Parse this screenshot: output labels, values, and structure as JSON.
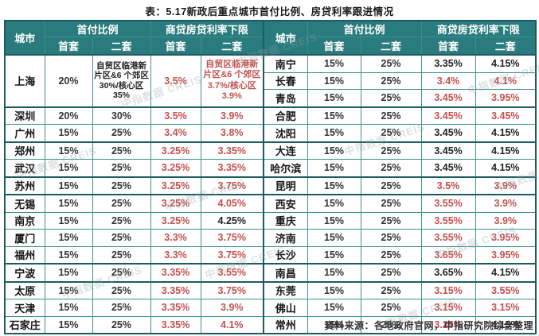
{
  "chart_data": {
    "type": "table",
    "title": "表：5.17新政后重点城市首付比例、房贷利率跟进情况",
    "source": "资料来源：各地政府官网，中指研究院综合整理",
    "watermark": "中指数据 CREIS",
    "headers": {
      "city": "城市",
      "down_payment": "首付比例",
      "rate_floor": "商贷房贷利率下限",
      "first": "首套",
      "second": "二套"
    },
    "colors": {
      "header_bg": "#2a7b7e",
      "border": "#3c9094",
      "border_thick": "#1c5c60",
      "red": "#c4514f",
      "text": "#212121"
    },
    "thick_top_rows": [
      4,
      6,
      8,
      9,
      13,
      14
    ],
    "left_rows": [
      {
        "city": "上海",
        "span": 3,
        "dp1": "20%",
        "dp2": "自贸区临港新片区&6 个郊区 30%/核心区 35%",
        "dp2_small": true,
        "r1": "3.5%",
        "r1_red": true,
        "r2": "自贸区临港新片区&6 个郊区 3.7%/核心区 3.9%",
        "r2_red": true,
        "r2_small": true
      },
      {
        "city": "深圳",
        "dp1": "20%",
        "dp2": "30%",
        "r1": "3.5%",
        "r1_red": true,
        "r2": "3.9%",
        "r2_red": true
      },
      {
        "city": "广州",
        "dp1": "15%",
        "dp2": "25%",
        "r1": "3.4%",
        "r1_red": true,
        "r2": "3.8%",
        "r2_red": true
      },
      {
        "city": "郑州",
        "dp1": "15%",
        "dp2": "25%",
        "r1": "3.25%",
        "r1_red": true,
        "r2": "3.35%",
        "r2_red": true
      },
      {
        "city": "武汉",
        "dp1": "15%",
        "dp2": "25%",
        "r1": "3.25%",
        "r1_red": true,
        "r2": "3.35%",
        "r2_red": true
      },
      {
        "city": "苏州",
        "dp1": "15%",
        "dp2": "25%",
        "r1": "3.25%",
        "r1_red": true,
        "r2": "3.75%",
        "r2_red": true
      },
      {
        "city": "无锡",
        "dp1": "15%",
        "dp2": "25%",
        "r1": "3.25%",
        "r1_red": true,
        "r2": "4.05%",
        "r2_red": true
      },
      {
        "city": "南京",
        "dp1": "15%",
        "dp2": "25%",
        "r1": "3.25%",
        "r1_red": true,
        "r2": "4.25%",
        "r2_red": false
      },
      {
        "city": "厦门",
        "dp1": "15%",
        "dp2": "25%",
        "r1": "3.3%",
        "r1_red": true,
        "r2": "3.75%",
        "r2_red": true
      },
      {
        "city": "福州",
        "dp1": "15%",
        "dp2": "25%",
        "r1": "3.3%",
        "r1_red": true,
        "r2": "3.75%",
        "r2_red": true
      },
      {
        "city": "宁波",
        "dp1": "15%",
        "dp2": "25%",
        "r1": "3.35%",
        "r1_red": true,
        "r2": "3.55%",
        "r2_red": true
      },
      {
        "city": "太原",
        "dp1": "15%",
        "dp2": "25%",
        "r1": "3.35%",
        "r1_red": true,
        "r2": "3.75%",
        "r2_red": true
      },
      {
        "city": "天津",
        "dp1": "15%",
        "dp2": "25%",
        "r1": "3.35%",
        "r1_red": true,
        "r2": "3.9%",
        "r2_red": true
      },
      {
        "city": "石家庄",
        "dp1": "15%",
        "dp2": "25%",
        "r1": "3.35%",
        "r1_red": true,
        "r2": "4.1%",
        "r2_red": true
      }
    ],
    "right_rows": [
      {
        "city": "南宁",
        "dp1": "15%",
        "dp2": "25%",
        "r1": "3.35%",
        "r1_red": false,
        "r2": "4.15%",
        "r2_red": false
      },
      {
        "city": "长春",
        "dp1": "15%",
        "dp2": "25%",
        "r1": "3.4%",
        "r1_red": true,
        "r2": "4.1%",
        "r2_red": true
      },
      {
        "city": "青岛",
        "dp1": "15%",
        "dp2": "25%",
        "r1": "3.45%",
        "r1_red": true,
        "r2": "3.95%",
        "r2_red": true
      },
      {
        "city": "合肥",
        "dp1": "15%",
        "dp2": "25%",
        "r1": "3.45%",
        "r1_red": true,
        "r2": "3.45%",
        "r2_red": true
      },
      {
        "city": "沈阳",
        "dp1": "15%",
        "dp2": "25%",
        "r1": "3.45%",
        "r1_red": false,
        "r2": "4.15%",
        "r2_red": false
      },
      {
        "city": "大连",
        "dp1": "15%",
        "dp2": "25%",
        "r1": "3.45%",
        "r1_red": false,
        "r2": "4.15%",
        "r2_red": false
      },
      {
        "city": "哈尔滨",
        "dp1": "15%",
        "dp2": "25%",
        "r1": "3.45%",
        "r1_red": false,
        "r2": "4.15%",
        "r2_red": false
      },
      {
        "city": "昆明",
        "dp1": "15%",
        "dp2": "25%",
        "r1": "3.5%",
        "r1_red": true,
        "r2": "3.9%",
        "r2_red": true
      },
      {
        "city": "西安",
        "dp1": "15%",
        "dp2": "25%",
        "r1": "3.55%",
        "r1_red": true,
        "r2": "3.9%",
        "r2_red": true
      },
      {
        "city": "重庆",
        "dp1": "15%",
        "dp2": "25%",
        "r1": "3.55%",
        "r1_red": true,
        "r2": "3.9%",
        "r2_red": true
      },
      {
        "city": "济南",
        "dp1": "15%",
        "dp2": "25%",
        "r1": "3.55%",
        "r1_red": true,
        "r2": "3.95%",
        "r2_red": true
      },
      {
        "city": "长沙",
        "dp1": "15%",
        "dp2": "25%",
        "r1": "3.65%",
        "r1_red": true,
        "r2": "3.95%",
        "r2_red": true
      },
      {
        "city": "南昌",
        "dp1": "15%",
        "dp2": "25%",
        "r1": "3.65%",
        "r1_red": false,
        "r2": "4.15%",
        "r2_red": false
      },
      {
        "city": "东莞",
        "dp1": "15%",
        "dp2": "25%",
        "r1": "3.15%",
        "r1_red": true,
        "r2": "3.55%",
        "r2_red": true
      },
      {
        "city": "佛山",
        "dp1": "15%",
        "dp2": "25%",
        "r1": "3.15%",
        "r1_red": true,
        "r2": "3.15%",
        "r2_red": true
      },
      {
        "city": "常州",
        "dp1": "15%",
        "dp2": "25%",
        "r1": "3.25%",
        "r1_red": true,
        "r2": "4.15%",
        "r2_red": false
      }
    ]
  }
}
